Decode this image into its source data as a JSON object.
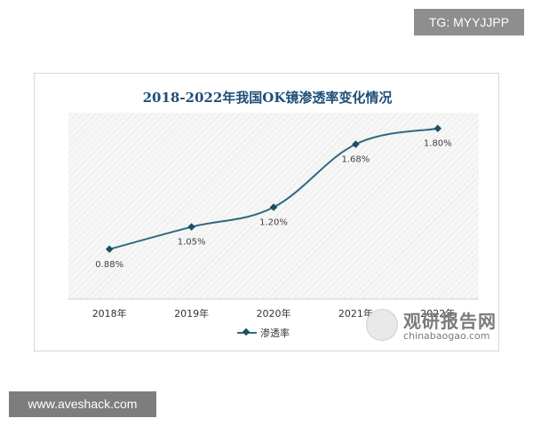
{
  "badges": {
    "top_right": "TG: MYYJJPP",
    "bottom_left": "www.aveshack.com"
  },
  "watermark": {
    "logo_text": "观研报告网",
    "logo_url": "chinabaogao.com"
  },
  "chart_data": {
    "type": "line",
    "title": "2018-2022年我国OK镜渗透率变化情况",
    "categories": [
      "2018年",
      "2019年",
      "2020年",
      "2021年",
      "2022年"
    ],
    "series": [
      {
        "name": "渗透率",
        "values": [
          0.88,
          1.05,
          1.2,
          1.68,
          1.8
        ],
        "labels": [
          "0.88%",
          "1.05%",
          "1.20%",
          "1.68%",
          "1.80%"
        ],
        "color": "#2e6b80"
      }
    ],
    "ylim": [
      0.5,
      1.92
    ],
    "grid": false,
    "legend": "bottom",
    "background_pattern": "diagonal-hatch"
  }
}
